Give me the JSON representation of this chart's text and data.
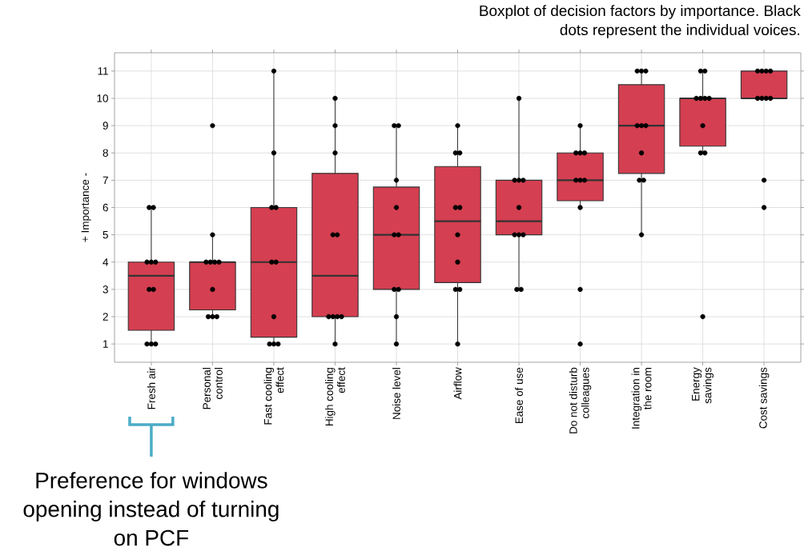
{
  "chart_data": {
    "type": "box",
    "title": "Boxplot of decision factors by importance. Black dots represent the individual voices.",
    "ylabel": "+ Importance -",
    "categories": [
      "Fresh air",
      "Personal\ncontrol",
      "Fast cooling\neffect",
      "High cooling\neffect",
      "Noise level",
      "Airflow",
      "Ease of use",
      "Do not disturb\ncolleagues",
      "Integration in\nthe room",
      "Energy\nsavings",
      "Cost savings"
    ],
    "series": [
      {
        "color": "#d43f51",
        "boxes": [
          {
            "low": 1,
            "q1": 1.5,
            "median": 3.5,
            "q3": 4,
            "high": 6
          },
          {
            "low": 2,
            "q1": 2.25,
            "median": 4,
            "q3": 4,
            "high": 5
          },
          {
            "low": 1,
            "q1": 1.25,
            "median": 4,
            "q3": 6,
            "high": 11
          },
          {
            "low": 1,
            "q1": 2,
            "median": 3.5,
            "q3": 7.25,
            "high": 10
          },
          {
            "low": 1,
            "q1": 3,
            "median": 5,
            "q3": 6.75,
            "high": 9
          },
          {
            "low": 1,
            "q1": 3.25,
            "median": 5.5,
            "q3": 7.5,
            "high": 9
          },
          {
            "low": 3,
            "q1": 5,
            "median": 5.5,
            "q3": 7,
            "high": 10
          },
          {
            "low": 6,
            "q1": 6.25,
            "median": 7,
            "q3": 8,
            "high": 9
          },
          {
            "low": 5,
            "q1": 7.25,
            "median": 9,
            "q3": 10.5,
            "high": 11
          },
          {
            "low": 8,
            "q1": 8.25,
            "median": 10,
            "q3": 10,
            "high": 11
          },
          {
            "low": 10,
            "q1": 10,
            "median": 10,
            "q3": 11,
            "high": 11
          }
        ]
      },
      {
        "type": "scatter",
        "color": "#000000",
        "marker": "circle",
        "x": [
          "Fresh air",
          "Fresh air",
          "Fresh air",
          "Fresh air",
          "Fresh air",
          "Fresh air",
          "Fresh air",
          "Fresh air",
          "Fresh air",
          "Fresh air",
          "Personal\ncontrol",
          "Personal\ncontrol",
          "Personal\ncontrol",
          "Personal\ncontrol",
          "Personal\ncontrol",
          "Personal\ncontrol",
          "Personal\ncontrol",
          "Personal\ncontrol",
          "Personal\ncontrol",
          "Personal\ncontrol",
          "Fast cooling\neffect",
          "Fast cooling\neffect",
          "Fast cooling\neffect",
          "Fast cooling\neffect",
          "Fast cooling\neffect",
          "Fast cooling\neffect",
          "Fast cooling\neffect",
          "Fast cooling\neffect",
          "Fast cooling\neffect",
          "Fast cooling\neffect",
          "High cooling\neffect",
          "High cooling\neffect",
          "High cooling\neffect",
          "High cooling\neffect",
          "High cooling\neffect",
          "High cooling\neffect",
          "High cooling\neffect",
          "High cooling\neffect",
          "High cooling\neffect",
          "High cooling\neffect",
          "Noise level",
          "Noise level",
          "Noise level",
          "Noise level",
          "Noise level",
          "Noise level",
          "Noise level",
          "Noise level",
          "Noise level",
          "Noise level",
          "Airflow",
          "Airflow",
          "Airflow",
          "Airflow",
          "Airflow",
          "Airflow",
          "Airflow",
          "Airflow",
          "Airflow",
          "Airflow",
          "Ease of use",
          "Ease of use",
          "Ease of use",
          "Ease of use",
          "Ease of use",
          "Ease of use",
          "Ease of use",
          "Ease of use",
          "Ease of use",
          "Ease of use",
          "Do not disturb\ncolleagues",
          "Do not disturb\ncolleagues",
          "Do not disturb\ncolleagues",
          "Do not disturb\ncolleagues",
          "Do not disturb\ncolleagues",
          "Do not disturb\ncolleagues",
          "Do not disturb\ncolleagues",
          "Do not disturb\ncolleagues",
          "Do not disturb\ncolleagues",
          "Do not disturb\ncolleagues",
          "Integration in\nthe room",
          "Integration in\nthe room",
          "Integration in\nthe room",
          "Integration in\nthe room",
          "Integration in\nthe room",
          "Integration in\nthe room",
          "Integration in\nthe room",
          "Integration in\nthe room",
          "Integration in\nthe room",
          "Integration in\nthe room",
          "Energy\nsavings",
          "Energy\nsavings",
          "Energy\nsavings",
          "Energy\nsavings",
          "Energy\nsavings",
          "Energy\nsavings",
          "Energy\nsavings",
          "Energy\nsavings",
          "Energy\nsavings",
          "Energy\nsavings",
          "Cost savings",
          "Cost savings",
          "Cost savings",
          "Cost savings",
          "Cost savings",
          "Cost savings",
          "Cost savings",
          "Cost savings",
          "Cost savings",
          "Cost savings"
        ],
        "values": [
          1,
          1,
          1,
          3,
          3,
          4,
          4,
          4,
          6,
          6,
          2,
          2,
          2,
          3,
          4,
          4,
          4,
          4,
          5,
          9,
          1,
          1,
          1,
          2,
          4,
          4,
          6,
          6,
          8,
          11,
          1,
          2,
          2,
          2,
          2,
          5,
          5,
          8,
          9,
          10,
          1,
          2,
          3,
          3,
          5,
          5,
          6,
          7,
          9,
          9,
          1,
          3,
          3,
          4,
          5,
          6,
          6,
          8,
          8,
          9,
          3,
          3,
          5,
          5,
          5,
          6,
          7,
          7,
          7,
          10,
          1,
          3,
          6,
          7,
          7,
          7,
          8,
          8,
          8,
          9,
          5,
          7,
          7,
          8,
          9,
          9,
          9,
          11,
          11,
          11,
          2,
          8,
          8,
          9,
          10,
          10,
          10,
          10,
          11,
          11,
          6,
          7,
          10,
          10,
          10,
          10,
          11,
          11,
          11,
          11
        ]
      }
    ],
    "ylim": [
      0.33,
      11.67
    ],
    "yticks": [
      1,
      2,
      3,
      4,
      5,
      6,
      7,
      8,
      9,
      10,
      11
    ],
    "grid": true,
    "annotations": [
      "Preference for windows opening instead of turning on PCF"
    ]
  }
}
